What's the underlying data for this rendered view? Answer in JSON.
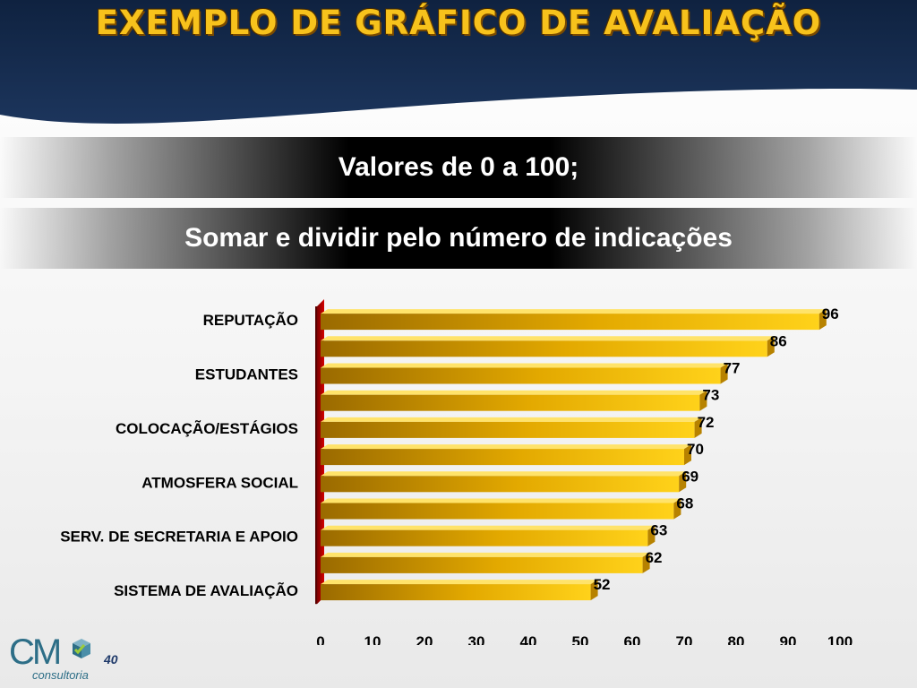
{
  "header": {
    "title": "EXEMPLO DE GRÁFICO DE AVALIAÇÃO"
  },
  "bands": [
    {
      "text": "Valores de 0 a 100;"
    },
    {
      "text": "Somar e dividir pelo número de indicações"
    }
  ],
  "chart_data": {
    "type": "bar",
    "orientation": "horizontal",
    "values": [
      96,
      86,
      77,
      73,
      72,
      70,
      69,
      68,
      63,
      62,
      52
    ],
    "category_labels": [
      "REPUTAÇÃO",
      "",
      "ESTUDANTES",
      "",
      "COLOCAÇÃO/ESTÁGIOS",
      "",
      "ATMOSFERA SOCIAL",
      "",
      "SERV. DE SECRETARIA E APOIO",
      "",
      "SISTEMA DE AVALIAÇÃO"
    ],
    "xlim": [
      0,
      100
    ],
    "x_ticks": [
      0,
      10,
      20,
      30,
      40,
      50,
      60,
      70,
      80,
      90,
      100
    ],
    "data_labels": true,
    "bar_color": "#f5c000",
    "bar_color_dark": "#9a6a00",
    "axis_wall_color": "#c00000",
    "grid": false
  },
  "footer": {
    "logo_text": "CM",
    "logo_subtext": "consultoria",
    "page_number": "40"
  }
}
